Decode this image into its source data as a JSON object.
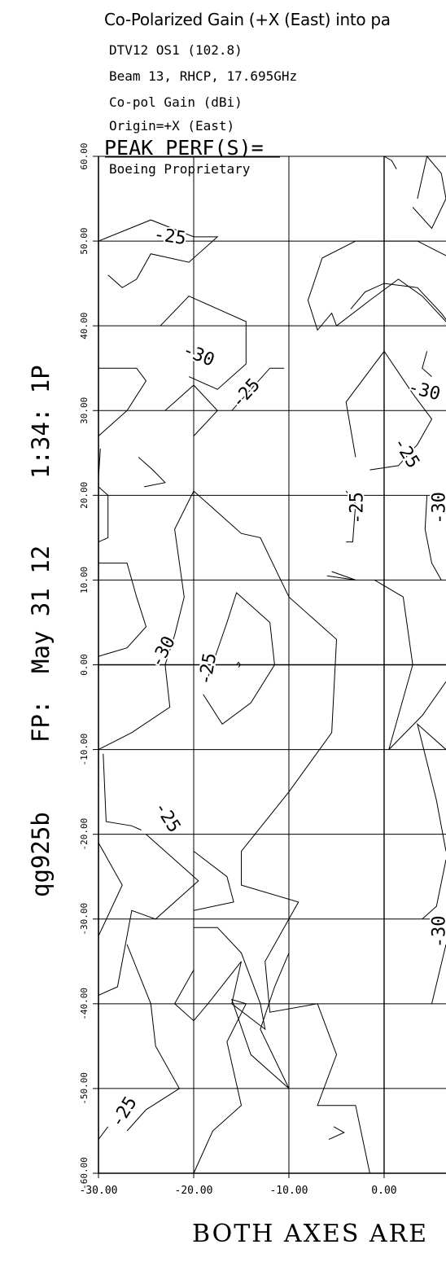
{
  "header": {
    "title": "Co-Polarized Gain (+X (East) into pa",
    "lines": [
      "DTV12 OS1 (102.8)",
      "Beam 13, RHCP, 17.695GHz",
      "Co-pol Gain (dBi)",
      "Origin=+X (East)"
    ],
    "peak_perf": "PEAK PERF(S)=",
    "proprietary": "Boeing Proprietary"
  },
  "side_labels": {
    "id": "qg925b",
    "fp": "FP:",
    "date": "May 31 12",
    "time": "1:34: 1P"
  },
  "footer": {
    "text": "BOTH AXES ARE"
  },
  "chart_data": {
    "type": "contour",
    "title": "Co-Polarized Gain (+X (East) into pa",
    "x_ticks": [
      "-30.00",
      "-20.00",
      "-10.00",
      "0.00"
    ],
    "y_ticks": [
      "60.00",
      "50.00",
      "40.00",
      "30.00",
      "20.00",
      "10.00",
      "0.00",
      "-10.00",
      "-20.00",
      "-30.00",
      "-40.00",
      "-50.00",
      "-60.00"
    ],
    "xlim": [
      -30,
      6.5
    ],
    "ylim": [
      -60,
      60
    ],
    "grid": true,
    "contour_labels": [
      {
        "text": "-25",
        "x": -22.5,
        "y": 50.5,
        "angle": 8
      },
      {
        "text": "-30",
        "x": -19.5,
        "y": 36.5,
        "angle": 22
      },
      {
        "text": "-25",
        "x": -14.5,
        "y": 32.0,
        "angle": -48
      },
      {
        "text": "-25",
        "x": -2.8,
        "y": 18.5,
        "angle": -90
      },
      {
        "text": "-30",
        "x": -23.2,
        "y": 1.5,
        "angle": -62
      },
      {
        "text": "-25",
        "x": -18.5,
        "y": -0.5,
        "angle": -80
      },
      {
        "text": "-25",
        "x": -22.8,
        "y": -18.0,
        "angle": 58
      },
      {
        "text": "-25",
        "x": -27.3,
        "y": -52.8,
        "angle": -58
      },
      {
        "text": "-30",
        "x": 4.2,
        "y": 32.3,
        "angle": 14
      },
      {
        "text": "-25",
        "x": 2.3,
        "y": 25.0,
        "angle": 58
      },
      {
        "text": "-30",
        "x": 5.8,
        "y": 18.5,
        "angle": -90
      },
      {
        "text": "-30",
        "x": 5.8,
        "y": -31.5,
        "angle": -90
      }
    ],
    "contours": [
      [
        [
          -30,
          50
        ],
        [
          -24.5,
          52.5
        ],
        [
          -20,
          50.5
        ],
        [
          -17.5,
          50.5
        ],
        [
          -20.5,
          47.5
        ],
        [
          -24.5,
          48.5
        ],
        [
          -26,
          45.5
        ],
        [
          -27.5,
          44.5
        ],
        [
          -29,
          46
        ]
      ],
      [
        [
          -23.5,
          40
        ],
        [
          -20.5,
          43.5
        ],
        [
          -14.5,
          40.5
        ],
        [
          -14.5,
          35.5
        ],
        [
          -17.5,
          32.5
        ],
        [
          -20.5,
          34
        ]
      ],
      [
        [
          -23,
          30
        ],
        [
          -20,
          33
        ],
        [
          -17.5,
          30
        ],
        [
          -20,
          27
        ]
      ],
      [
        [
          -16,
          30
        ],
        [
          -12,
          35
        ],
        [
          -10.5,
          35
        ]
      ],
      [
        [
          -30,
          35
        ],
        [
          -26,
          35
        ],
        [
          -25,
          33.5
        ],
        [
          -27,
          30
        ],
        [
          -30,
          27
        ]
      ],
      [
        [
          -25.8,
          24.5
        ],
        [
          -24.3,
          23
        ],
        [
          -23,
          21.5
        ],
        [
          -25.2,
          21
        ]
      ],
      [
        [
          -30,
          22
        ],
        [
          -29.8,
          25.5
        ]
      ],
      [
        [
          -30,
          21
        ],
        [
          -29,
          20
        ],
        [
          -29,
          15
        ],
        [
          -30,
          14.5
        ]
      ],
      [
        [
          -30,
          12
        ],
        [
          -27,
          12
        ],
        [
          -26,
          8
        ],
        [
          -25,
          4.5
        ],
        [
          -27,
          2
        ],
        [
          -30,
          1
        ]
      ],
      [
        [
          -20,
          20.5
        ],
        [
          -22,
          16
        ],
        [
          -21,
          8
        ],
        [
          -22,
          3.5
        ],
        [
          -23,
          0
        ],
        [
          -22.5,
          -5
        ],
        [
          -26.5,
          -8
        ],
        [
          -30,
          -10
        ]
      ],
      [
        [
          -20,
          20.5
        ],
        [
          -15,
          15.5
        ],
        [
          -13,
          15
        ],
        [
          -10,
          8
        ],
        [
          -5,
          3
        ],
        [
          -5.5,
          -8
        ],
        [
          -10,
          -15
        ],
        [
          -15,
          -22
        ],
        [
          -15,
          -26
        ],
        [
          -9,
          -28
        ],
        [
          -12.5,
          -35
        ],
        [
          -12,
          -41
        ],
        [
          -7,
          -40
        ],
        [
          -5,
          -46
        ],
        [
          -7,
          -52
        ],
        [
          -3,
          -52
        ],
        [
          -1.5,
          -60
        ]
      ],
      [
        [
          -4,
          20.5
        ],
        [
          -3,
          19
        ],
        [
          -3.3,
          14.5
        ],
        [
          -4,
          14.5
        ]
      ],
      [
        [
          -6,
          10.5
        ],
        [
          -3,
          10
        ],
        [
          -5.5,
          11
        ]
      ],
      [
        [
          -18.5,
          -1.5
        ],
        [
          -16.5,
          5
        ],
        [
          -15.5,
          8.5
        ],
        [
          -12,
          5
        ],
        [
          -11.5,
          0
        ],
        [
          -14,
          -4.5
        ],
        [
          -17,
          -7
        ],
        [
          -19,
          -3.5
        ]
      ],
      [
        [
          -15.5,
          0
        ],
        [
          -15.3,
          0.3
        ],
        [
          -15.1,
          0
        ],
        [
          -15.3,
          -0.3
        ]
      ],
      [
        [
          -29.5,
          -10.5
        ],
        [
          -29.2,
          -18.5
        ],
        [
          -26.5,
          -19
        ],
        [
          -25.5,
          -19.5
        ]
      ],
      [
        [
          -25,
          -20
        ],
        [
          -22,
          -23
        ],
        [
          -19.5,
          -25.5
        ],
        [
          -24,
          -30
        ],
        [
          -26.5,
          -29
        ],
        [
          -28,
          -38
        ],
        [
          -30,
          -39
        ]
      ],
      [
        [
          -30,
          -21
        ],
        [
          -27.5,
          -26
        ],
        [
          -30,
          -32
        ]
      ],
      [
        [
          -20,
          -29
        ],
        [
          -15.8,
          -28
        ],
        [
          -16.5,
          -25
        ],
        [
          -20,
          -22
        ]
      ],
      [
        [
          -20,
          -31
        ],
        [
          -17.5,
          -31
        ],
        [
          -15,
          -34
        ],
        [
          -13,
          -40
        ],
        [
          -12.5,
          -43
        ],
        [
          -16,
          -40
        ],
        [
          -15,
          -35
        ],
        [
          -18.5,
          -40
        ],
        [
          -20,
          -42
        ],
        [
          -22,
          -40
        ],
        [
          -20,
          -36
        ],
        [
          -20,
          -31
        ]
      ],
      [
        [
          -27,
          -55
        ],
        [
          -25,
          -52.5
        ],
        [
          -21.5,
          -50
        ],
        [
          -24,
          -45
        ],
        [
          -24.5,
          -40
        ],
        [
          -27,
          -33
        ]
      ],
      [
        [
          -20,
          -60
        ],
        [
          -18,
          -55
        ],
        [
          -15,
          -52
        ],
        [
          -16.5,
          -44.5
        ],
        [
          -14.5,
          -40
        ],
        [
          -16,
          -39.5
        ],
        [
          -14,
          -46
        ],
        [
          -10,
          -50
        ],
        [
          -13,
          -43
        ],
        [
          -11.5,
          -38
        ],
        [
          -10,
          -34
        ],
        [
          -10,
          -30
        ]
      ],
      [
        [
          -30,
          -56
        ],
        [
          -29,
          -54.5
        ]
      ],
      [
        [
          -5.3,
          -54.5
        ],
        [
          -4.2,
          -55.2
        ],
        [
          -5.8,
          -56
        ]
      ],
      [
        [
          -3,
          50
        ],
        [
          3.5,
          50
        ],
        [
          7,
          48
        ]
      ],
      [
        [
          -3,
          50
        ],
        [
          -6.5,
          48
        ],
        [
          -8,
          43
        ],
        [
          -7,
          39.5
        ],
        [
          -5.5,
          41.5
        ],
        [
          -5,
          40
        ],
        [
          -1.5,
          43
        ],
        [
          1.5,
          45.5
        ],
        [
          4,
          43.5
        ],
        [
          6.5,
          40.5
        ]
      ],
      [
        [
          -3.5,
          42
        ],
        [
          -2,
          44
        ],
        [
          0,
          45
        ],
        [
          3.5,
          44.5
        ],
        [
          6,
          41.5
        ],
        [
          7,
          40
        ]
      ],
      [
        [
          0,
          60
        ],
        [
          0.8,
          59.5
        ],
        [
          1.3,
          58.5
        ]
      ],
      [
        [
          3.5,
          55
        ],
        [
          4.5,
          60
        ],
        [
          6,
          58
        ],
        [
          6.5,
          55
        ],
        [
          5,
          51.5
        ],
        [
          3,
          54
        ]
      ],
      [
        [
          -3,
          24.5
        ],
        [
          -4,
          31
        ],
        [
          0,
          37
        ],
        [
          3,
          32
        ],
        [
          5,
          29
        ],
        [
          3.5,
          26
        ],
        [
          1.5,
          23.5
        ],
        [
          -1.5,
          23
        ]
      ],
      [
        [
          4.5,
          37
        ],
        [
          4,
          35
        ],
        [
          5,
          34
        ]
      ],
      [
        [
          4.5,
          20
        ],
        [
          4.3,
          16
        ],
        [
          5,
          12
        ],
        [
          6,
          10
        ]
      ],
      [
        [
          -1,
          10
        ],
        [
          2,
          8
        ],
        [
          3,
          0
        ],
        [
          0.5,
          -10
        ],
        [
          4,
          -6
        ],
        [
          6.5,
          -2
        ]
      ],
      [
        [
          6.5,
          -10
        ],
        [
          3.5,
          -7
        ],
        [
          5.5,
          -16
        ],
        [
          6.5,
          -22
        ]
      ],
      [
        [
          4,
          -30
        ],
        [
          5.5,
          -28.5
        ],
        [
          6.5,
          -23
        ]
      ],
      [
        [
          5,
          -40
        ],
        [
          6.5,
          -33
        ]
      ]
    ]
  }
}
